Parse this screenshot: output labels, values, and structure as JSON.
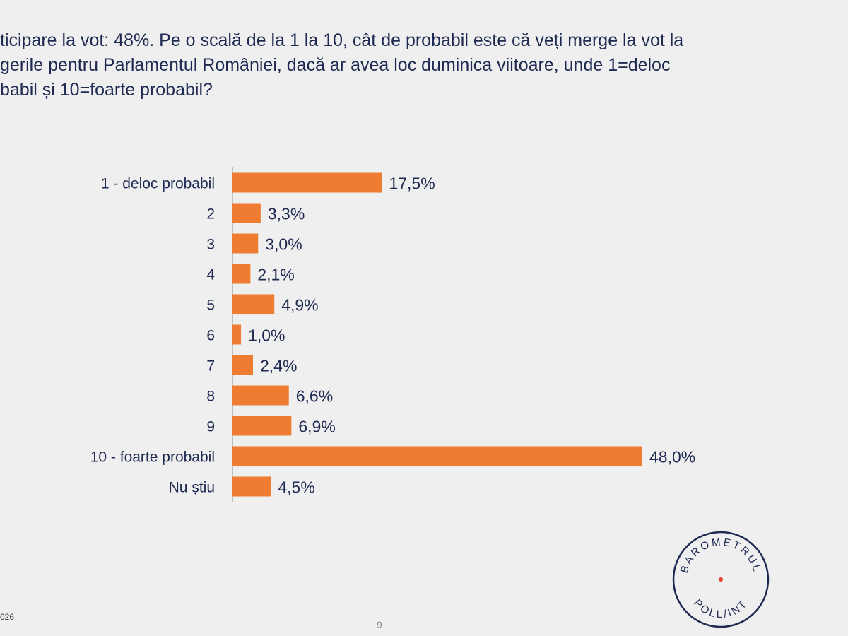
{
  "question": {
    "line1": "ticipare la vot: 48%. Pe o scală de la 1 la 10, cât de probabil este că veți merge la vot la",
    "line2": "gerile pentru Parlamentul României, dacă ar avea loc duminica viitoare, unde 1=deloc",
    "line3": "babil și 10=foarte probabil?"
  },
  "chart_data": {
    "type": "bar",
    "orientation": "horizontal",
    "title": "",
    "categories": [
      "1 - deloc probabil",
      "2",
      "3",
      "4",
      "5",
      "6",
      "7",
      "8",
      "9",
      "10 - foarte probabil",
      "Nu știu"
    ],
    "values": [
      17.5,
      3.3,
      3.0,
      2.1,
      4.9,
      1.0,
      2.4,
      6.6,
      6.9,
      48.0,
      4.5
    ],
    "data_labels": [
      "17,5%",
      "3,3%",
      "3,0%",
      "2,1%",
      "4,9%",
      "1,0%",
      "2,4%",
      "6,6%",
      "6,9%",
      "48,0%",
      "4,5%"
    ],
    "xlabel": "",
    "ylabel": "",
    "xlim": [
      0,
      50
    ],
    "grid": false,
    "bar_color": "#ef7d31"
  },
  "footer": {
    "date_fragment": "026",
    "page_number": "9"
  },
  "logo": {
    "top_text": "BAROMETRUL",
    "bottom_text": "POLL/INT",
    "dot_color": "#e8412e"
  },
  "colors": {
    "text": "#1f2a52",
    "background": "#efefef"
  }
}
